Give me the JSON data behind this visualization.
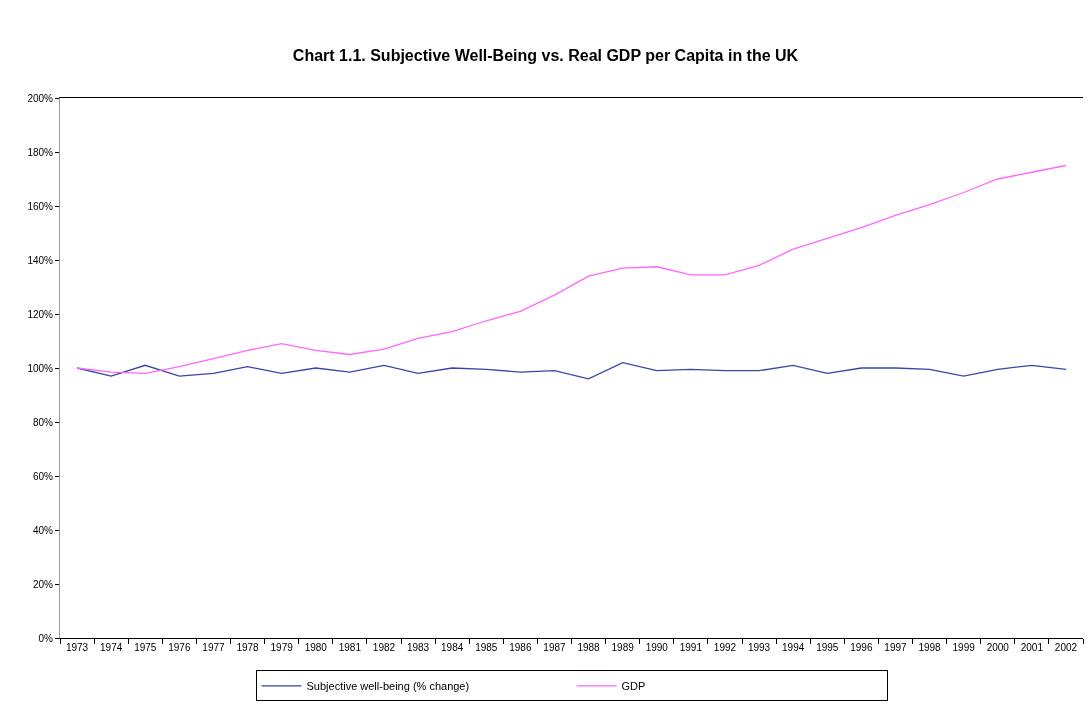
{
  "chart_data": {
    "type": "line",
    "title": "Chart 1.1. Subjective Well-Being vs. Real GDP per Capita in the UK",
    "categories": [
      "1973",
      "1974",
      "1975",
      "1976",
      "1977",
      "1978",
      "1979",
      "1980",
      "1981",
      "1982",
      "1983",
      "1984",
      "1985",
      "1986",
      "1987",
      "1988",
      "1989",
      "1990",
      "1991",
      "1992",
      "1993",
      "1994",
      "1995",
      "1996",
      "1997",
      "1998",
      "1999",
      "2000",
      "2001",
      "2002"
    ],
    "series": [
      {
        "name": "Subjective well-being (% change)",
        "color": "#3a46a8",
        "values": [
          100,
          97,
          101,
          97,
          98,
          100.5,
          98,
          100,
          98.5,
          101,
          98,
          100,
          99.5,
          98.5,
          99,
          96,
          102,
          99,
          99.5,
          99,
          99,
          101,
          98,
          100,
          100,
          99.5,
          97,
          99.5,
          101,
          99.5
        ]
      },
      {
        "name": "GDP",
        "color": "#ff66ff",
        "values": [
          100,
          98.5,
          98,
          100.5,
          103.5,
          106.5,
          109,
          106.5,
          105,
          107,
          111,
          113.5,
          117.5,
          121,
          127,
          134,
          137,
          137.5,
          134.5,
          134.5,
          138,
          144,
          148,
          152,
          156.5,
          160.5,
          165,
          170,
          172.5,
          175
        ]
      }
    ],
    "ylim": [
      0,
      200
    ],
    "yticks": [
      {
        "value": 0,
        "label": "0%"
      },
      {
        "value": 20,
        "label": "20%"
      },
      {
        "value": 40,
        "label": "40%"
      },
      {
        "value": 60,
        "label": "60%"
      },
      {
        "value": 80,
        "label": "80%"
      },
      {
        "value": 100,
        "label": "100%"
      },
      {
        "value": 120,
        "label": "120%"
      },
      {
        "value": 140,
        "label": "140%"
      },
      {
        "value": 160,
        "label": "160%"
      },
      {
        "value": 180,
        "label": "180%"
      },
      {
        "value": 200,
        "label": "200%"
      }
    ],
    "legend": "bottom",
    "marker": "none",
    "line_style": "solid"
  }
}
